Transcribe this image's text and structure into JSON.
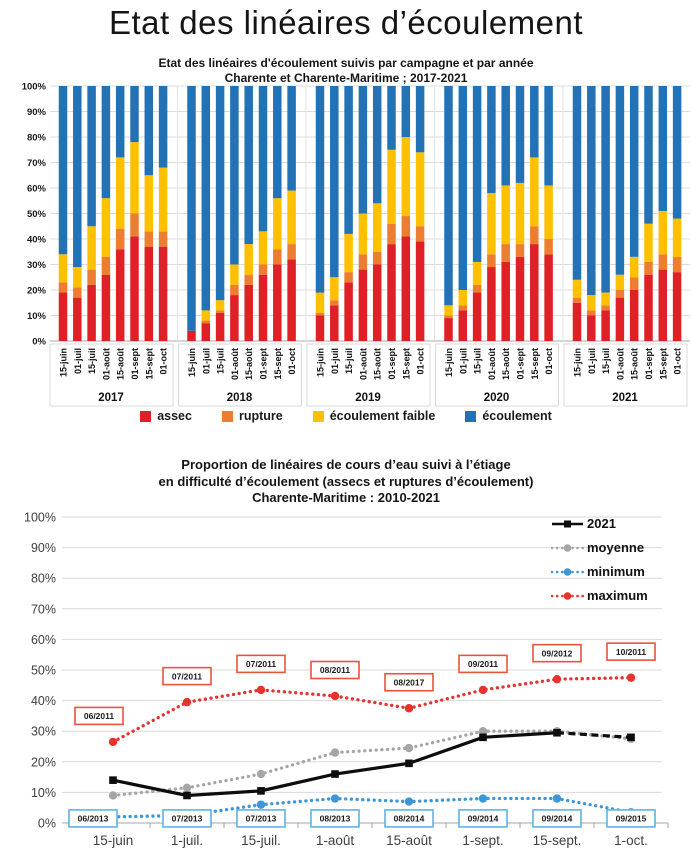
{
  "header": {
    "title": "Etat des linéaires d’écoulement"
  },
  "chart_data": [
    {
      "type": "bar",
      "stacked": true,
      "units": "percent",
      "title_lines": [
        "Etat des linéaires d'écoulement suivis par campagne et par année",
        "Charente et Charente-Maritime ;  2017-2021"
      ],
      "categories": [
        "15-juin",
        "01-juil",
        "15-juil",
        "01-août",
        "15-août",
        "01-sept",
        "15-sept",
        "01-oct"
      ],
      "groups": [
        "2017",
        "2018",
        "2019",
        "2020",
        "2021"
      ],
      "ylim": [
        0,
        100
      ],
      "y_tick_step": 10,
      "y_tick_suffix": "%",
      "grid": true,
      "legend_position": "bottom",
      "series": [
        {
          "name": "assec",
          "color": "#df2026",
          "values": {
            "2017": [
              19,
              17,
              22,
              26,
              36,
              41,
              37,
              37
            ],
            "2018": [
              4,
              7,
              11,
              18,
              22,
              26,
              30,
              32
            ],
            "2019": [
              10,
              14,
              23,
              28,
              30,
              38,
              41,
              39
            ],
            "2020": [
              9,
              12,
              19,
              29,
              31,
              33,
              38,
              34
            ],
            "2021": [
              15,
              10,
              12,
              17,
              20,
              26,
              28,
              27
            ]
          }
        },
        {
          "name": "rupture",
          "color": "#ed7d31",
          "values": {
            "2017": [
              4,
              4,
              6,
              7,
              8,
              9,
              6,
              6
            ],
            "2018": [
              0,
              1,
              1,
              4,
              4,
              4,
              6,
              6
            ],
            "2019": [
              1,
              2,
              4,
              6,
              5,
              8,
              8,
              6
            ],
            "2020": [
              1,
              2,
              3,
              5,
              7,
              5,
              7,
              6
            ],
            "2021": [
              2,
              2,
              2,
              3,
              5,
              5,
              6,
              6
            ]
          }
        },
        {
          "name": "écoulement faible",
          "color": "#ffc000",
          "values": {
            "2017": [
              11,
              8,
              17,
              23,
              28,
              28,
              22,
              25
            ],
            "2018": [
              0,
              4,
              4,
              8,
              12,
              13,
              20,
              21
            ],
            "2019": [
              8,
              9,
              15,
              16,
              19,
              29,
              31,
              29
            ],
            "2020": [
              4,
              6,
              9,
              24,
              23,
              24,
              27,
              21
            ],
            "2021": [
              7,
              6,
              5,
              6,
              8,
              15,
              17,
              15
            ]
          }
        },
        {
          "name": "écoulement",
          "color": "#2272b5",
          "values": {
            "2017": [
              66,
              71,
              55,
              44,
              28,
              22,
              35,
              32
            ],
            "2018": [
              96,
              88,
              84,
              70,
              62,
              57,
              44,
              41
            ],
            "2019": [
              81,
              75,
              58,
              50,
              46,
              25,
              20,
              26
            ],
            "2020": [
              86,
              80,
              69,
              42,
              39,
              38,
              28,
              39
            ],
            "2021": [
              76,
              82,
              81,
              74,
              67,
              54,
              49,
              52
            ]
          }
        }
      ]
    },
    {
      "type": "line",
      "units": "percent",
      "title_lines": [
        "Proportion de linéaires de cours d’eau suivi à l’étiage",
        "en difficulté d’écoulement (assecs et ruptures d’écoulement)",
        "Charente-Maritime : 2010-2021"
      ],
      "categories": [
        "15-juin",
        "1-juil.",
        "15-juil.",
        "1-août",
        "15-août",
        "1-sept.",
        "15-sept.",
        "1-oct."
      ],
      "ylim": [
        0,
        100
      ],
      "y_tick_step": 10,
      "y_tick_suffix": "%",
      "grid": true,
      "legend_position": "right",
      "series": [
        {
          "name": "2021",
          "color": "#0d0d0d",
          "style": "solid",
          "marker": "square",
          "dashed_from_index": 6,
          "values": [
            14,
            9,
            10.5,
            16,
            19.5,
            28,
            29.5,
            28
          ]
        },
        {
          "name": "moyenne",
          "color": "#a6a6a6",
          "style": "dotted",
          "marker": "circle",
          "values": [
            9,
            11.5,
            16,
            23,
            24.5,
            30,
            30,
            27.5
          ]
        },
        {
          "name": "minimum",
          "color": "#3b97d8",
          "style": "dotted",
          "marker": "circle",
          "box_color": "#5eb3e4",
          "point_labels": [
            "06/2013",
            "07/2013",
            "07/2013",
            "08/2013",
            "08/2014",
            "09/2014",
            "09/2014",
            "09/2015"
          ],
          "values": [
            2,
            2.5,
            6,
            8,
            7,
            8,
            8,
            3.5
          ]
        },
        {
          "name": "maximum",
          "color": "#e6332e",
          "style": "dotted",
          "marker": "circle",
          "box_color": "#e8543b",
          "point_labels": [
            "06/2011",
            "07/2011",
            "07/2011",
            "08/2011",
            "08/2017",
            "09/2011",
            "09/2012",
            "10/2011"
          ],
          "values": [
            26.5,
            39.5,
            43.5,
            41.5,
            37.5,
            43.5,
            47,
            47.5
          ]
        }
      ]
    }
  ]
}
